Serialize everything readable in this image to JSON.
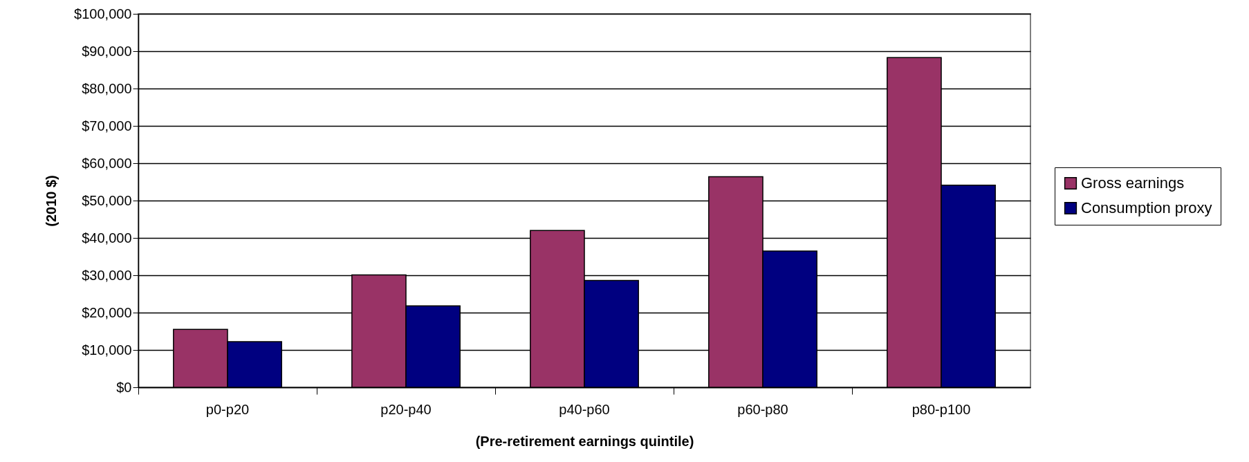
{
  "chart_data": {
    "type": "bar",
    "xlabel": "(Pre-retirement earnings quintile)",
    "ylabel": "(2010 $)",
    "categories": [
      "p0-p20",
      "p20-p40",
      "p40-p60",
      "p60-p80",
      "p80-p100"
    ],
    "series": [
      {
        "name": "Gross earnings",
        "color": "#993366",
        "values": [
          15500,
          30100,
          42000,
          56400,
          88300
        ]
      },
      {
        "name": "Consumption proxy",
        "color": "#000080",
        "values": [
          12200,
          21800,
          28600,
          36500,
          54100
        ]
      }
    ],
    "ylim": [
      0,
      100000
    ],
    "yticks": [
      {
        "value": 0,
        "label": "$0"
      },
      {
        "value": 10000,
        "label": "$10,000"
      },
      {
        "value": 20000,
        "label": "$20,000"
      },
      {
        "value": 30000,
        "label": "$30,000"
      },
      {
        "value": 40000,
        "label": "$40,000"
      },
      {
        "value": 50000,
        "label": "$50,000"
      },
      {
        "value": 60000,
        "label": "$60,000"
      },
      {
        "value": 70000,
        "label": "$70,000"
      },
      {
        "value": 80000,
        "label": "$80,000"
      },
      {
        "value": 90000,
        "label": "$90,000"
      },
      {
        "value": 100000,
        "label": "$100,000"
      }
    ],
    "grid": "y",
    "legend": "right"
  }
}
